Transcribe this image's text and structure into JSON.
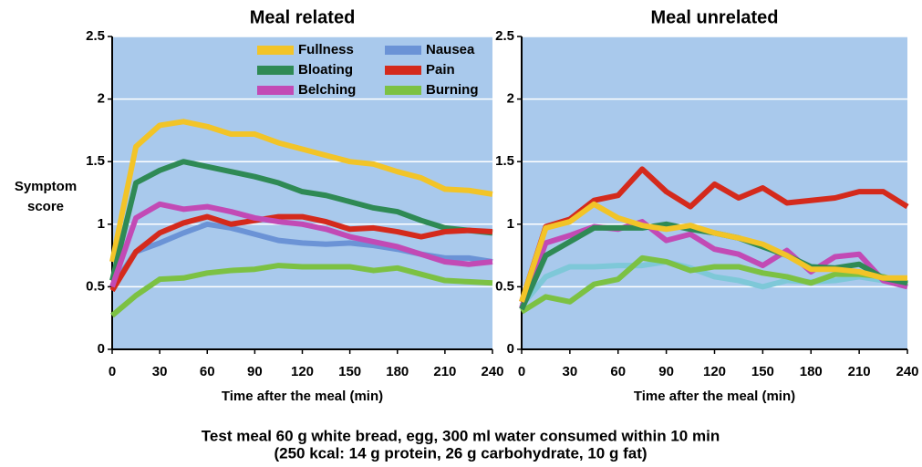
{
  "chart_data": [
    {
      "type": "line",
      "title": "Meal related",
      "ylabel": [
        "Symptom",
        "score"
      ],
      "xlabel": "Time after the meal (min)",
      "x": [
        0,
        15,
        30,
        45,
        60,
        75,
        90,
        105,
        120,
        135,
        150,
        165,
        180,
        195,
        210,
        225,
        240
      ],
      "xlim": [
        0,
        240
      ],
      "xticks": [
        0,
        30,
        60,
        90,
        120,
        150,
        180,
        210,
        240
      ],
      "ylim": [
        0,
        2.5
      ],
      "yticks": [
        0,
        0.5,
        1,
        1.5,
        2,
        2.5
      ],
      "grid": true,
      "legend": "upper right",
      "series": [
        {
          "name": "Fullness",
          "color": "#f2c428",
          "values": [
            0.7,
            1.62,
            1.79,
            1.82,
            1.78,
            1.72,
            1.72,
            1.65,
            1.6,
            1.55,
            1.5,
            1.48,
            1.42,
            1.37,
            1.28,
            1.27,
            1.24
          ]
        },
        {
          "name": "Nausea",
          "color": "#6b93d6",
          "values": [
            0.5,
            0.78,
            0.85,
            0.93,
            1.0,
            0.97,
            0.92,
            0.87,
            0.85,
            0.84,
            0.85,
            0.83,
            0.8,
            0.76,
            0.73,
            0.73,
            0.7
          ]
        },
        {
          "name": "Bloating",
          "color": "#2f8a55",
          "values": [
            0.55,
            1.33,
            1.43,
            1.5,
            1.46,
            1.42,
            1.38,
            1.33,
            1.26,
            1.23,
            1.18,
            1.13,
            1.1,
            1.03,
            0.97,
            0.95,
            0.93
          ]
        },
        {
          "name": "Pain",
          "color": "#d42a1c",
          "values": [
            0.47,
            0.78,
            0.93,
            1.01,
            1.06,
            1.0,
            1.03,
            1.06,
            1.06,
            1.02,
            0.96,
            0.97,
            0.94,
            0.9,
            0.94,
            0.95,
            0.94
          ]
        },
        {
          "name": "Belching",
          "color": "#c24ab5",
          "values": [
            0.5,
            1.05,
            1.16,
            1.12,
            1.14,
            1.1,
            1.05,
            1.02,
            1.0,
            0.96,
            0.9,
            0.86,
            0.82,
            0.76,
            0.7,
            0.68,
            0.7
          ]
        },
        {
          "name": "Burning",
          "color": "#7cc143",
          "values": [
            0.27,
            0.43,
            0.56,
            0.57,
            0.61,
            0.63,
            0.64,
            0.67,
            0.66,
            0.66,
            0.66,
            0.63,
            0.65,
            0.6,
            0.55,
            0.54,
            0.53
          ]
        }
      ]
    },
    {
      "type": "line",
      "title": "Meal unrelated",
      "xlabel": "Time after the meal (min)",
      "x": [
        0,
        15,
        30,
        45,
        60,
        75,
        90,
        105,
        120,
        135,
        150,
        165,
        180,
        195,
        210,
        225,
        240
      ],
      "xlim": [
        0,
        240
      ],
      "xticks": [
        0,
        30,
        60,
        90,
        120,
        150,
        180,
        210,
        240
      ],
      "ylim": [
        0,
        2.5
      ],
      "yticks": [
        0,
        0.5,
        1,
        1.5,
        2,
        2.5
      ],
      "grid": true,
      "series": [
        {
          "color": "#7ec8d8",
          "values": [
            0.35,
            0.58,
            0.66,
            0.66,
            0.67,
            0.67,
            0.7,
            0.65,
            0.58,
            0.55,
            0.5,
            0.55,
            0.54,
            0.55,
            0.58,
            0.55,
            0.5
          ]
        },
        {
          "color": "#7cc143",
          "values": [
            0.3,
            0.42,
            0.38,
            0.52,
            0.56,
            0.73,
            0.7,
            0.63,
            0.66,
            0.66,
            0.61,
            0.58,
            0.53,
            0.6,
            0.6,
            0.58,
            0.52
          ]
        },
        {
          "color": "#c24ab5",
          "values": [
            0.33,
            0.85,
            0.91,
            0.98,
            0.96,
            1.02,
            0.87,
            0.92,
            0.8,
            0.76,
            0.67,
            0.79,
            0.62,
            0.74,
            0.76,
            0.55,
            0.5
          ]
        },
        {
          "color": "#2f8a55",
          "values": [
            0.32,
            0.75,
            0.86,
            0.97,
            0.97,
            0.97,
            1.0,
            0.96,
            0.93,
            0.89,
            0.82,
            0.75,
            0.66,
            0.65,
            0.68,
            0.57,
            0.53
          ]
        },
        {
          "color": "#d42a1c",
          "values": [
            0.38,
            0.98,
            1.04,
            1.19,
            1.23,
            1.44,
            1.26,
            1.14,
            1.32,
            1.21,
            1.29,
            1.17,
            1.19,
            1.21,
            1.26,
            1.26,
            1.14
          ]
        },
        {
          "color": "#f2c428",
          "values": [
            0.38,
            0.97,
            1.02,
            1.16,
            1.05,
            0.99,
            0.96,
            0.99,
            0.93,
            0.89,
            0.84,
            0.75,
            0.64,
            0.64,
            0.62,
            0.57,
            0.57
          ]
        }
      ]
    }
  ],
  "caption": [
    "Test meal 60 g white bread, egg, 300 ml water consumed within 10 min",
    "(250 kcal: 14 g protein, 26 g carbohydrate, 10 g fat)"
  ]
}
